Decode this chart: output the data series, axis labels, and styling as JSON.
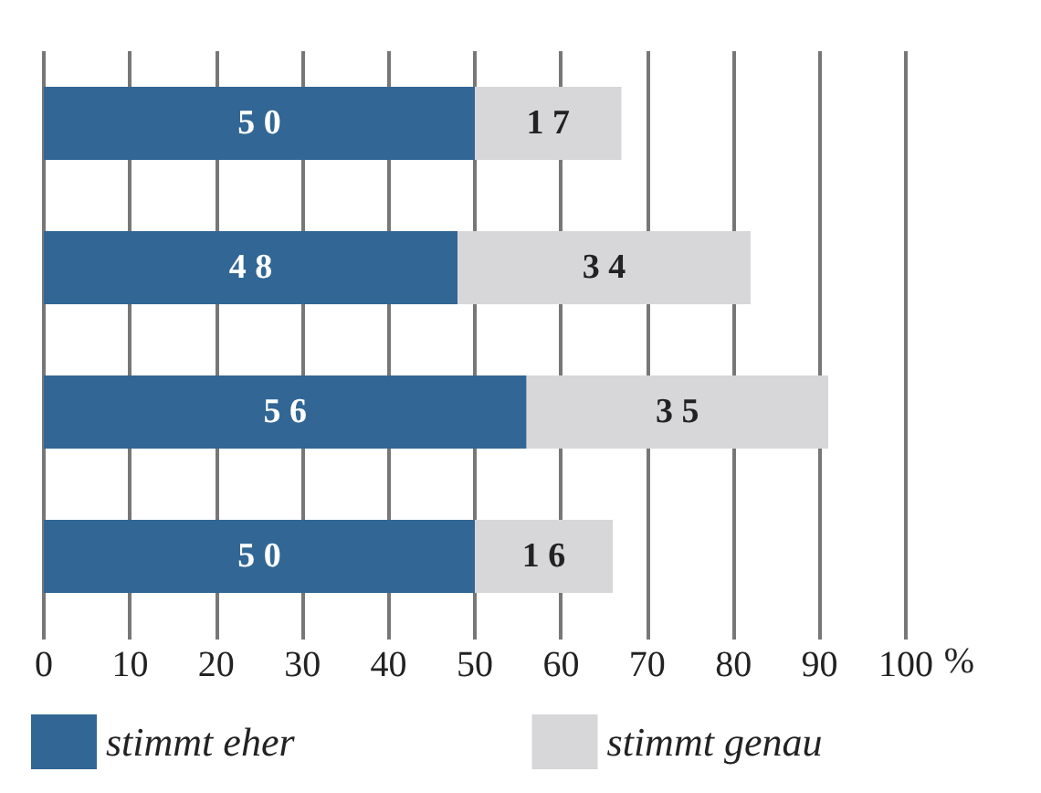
{
  "chart_data": {
    "type": "bar",
    "orientation": "horizontal",
    "stacked": true,
    "categories": [
      null,
      null,
      null,
      null
    ],
    "series": [
      {
        "name": "stimmt eher",
        "color": "#316695",
        "values": [
          50,
          48,
          56,
          50
        ]
      },
      {
        "name": "stimmt genau",
        "color": "#d7d7d9",
        "values": [
          17,
          34,
          35,
          16
        ]
      }
    ],
    "xlabel": "%",
    "xlim": [
      0,
      100
    ],
    "xticks": [
      0,
      10,
      20,
      30,
      40,
      50,
      60,
      70,
      80,
      90,
      100
    ],
    "grid": "x",
    "legend": "bottom",
    "data_labels": true
  }
}
